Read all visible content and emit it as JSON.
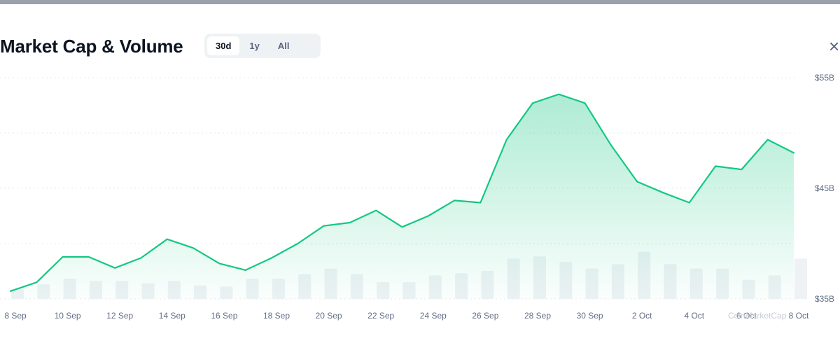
{
  "header": {
    "title": "Market Cap & Volume",
    "ranges": [
      "30d",
      "1y",
      "All"
    ],
    "active_range": "30d",
    "close_icon": "close-icon",
    "close_glyph": "×"
  },
  "watermark": "CoinMarketCap",
  "colors": {
    "line": "#16c784",
    "area_top": "#16c784",
    "volume_bar": "#eff2f5",
    "grid": "#e5e8ec",
    "tick": "#616e85",
    "top_bar": "#9aa1ac"
  },
  "chart_data": {
    "type": "line",
    "title": "Market Cap & Volume",
    "xlabel": "",
    "ylabel": "",
    "x_ticks": [
      "8 Sep",
      "10 Sep",
      "12 Sep",
      "14 Sep",
      "16 Sep",
      "18 Sep",
      "20 Sep",
      "22 Sep",
      "24 Sep",
      "26 Sep",
      "28 Sep",
      "30 Sep",
      "2 Oct",
      "4 Oct",
      "6 Oct",
      "8 Oct"
    ],
    "y_ticks": [
      "$35B",
      "$45B",
      "$55B"
    ],
    "ylim": [
      35,
      55
    ],
    "grid": true,
    "x": [
      "8 Sep",
      "9 Sep",
      "10 Sep",
      "11 Sep",
      "12 Sep",
      "13 Sep",
      "14 Sep",
      "15 Sep",
      "16 Sep",
      "17 Sep",
      "18 Sep",
      "19 Sep",
      "20 Sep",
      "21 Sep",
      "22 Sep",
      "23 Sep",
      "24 Sep",
      "25 Sep",
      "26 Sep",
      "27 Sep",
      "28 Sep",
      "29 Sep",
      "30 Sep",
      "1 Oct",
      "2 Oct",
      "3 Oct",
      "4 Oct",
      "5 Oct",
      "6 Oct",
      "7 Oct",
      "8 Oct"
    ],
    "series": [
      {
        "type": "line",
        "values": [
          35.7,
          36.5,
          38.8,
          38.8,
          37.8,
          38.7,
          40.4,
          39.6,
          38.2,
          37.6,
          38.7,
          40.0,
          41.6,
          41.9,
          43.0,
          41.5,
          42.5,
          43.9,
          43.7,
          49.4,
          52.7,
          53.5,
          52.7,
          48.9,
          45.6,
          44.6,
          43.7,
          47.0,
          46.7,
          49.4,
          48.2
        ]
      },
      {
        "type": "bar",
        "values": [
          0.9,
          1.3,
          1.8,
          1.6,
          1.6,
          1.4,
          1.6,
          1.2,
          1.1,
          1.8,
          1.8,
          2.2,
          2.7,
          2.2,
          1.5,
          1.5,
          2.1,
          2.3,
          2.5,
          3.6,
          3.8,
          3.3,
          2.7,
          3.1,
          4.2,
          3.1,
          2.7,
          2.7,
          1.7,
          2.1,
          3.6
        ]
      }
    ]
  }
}
